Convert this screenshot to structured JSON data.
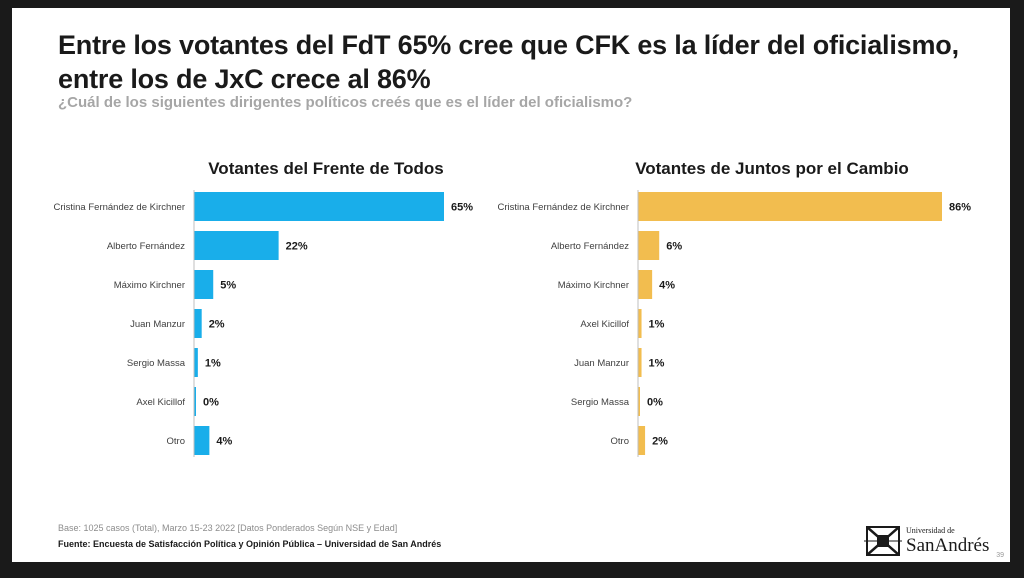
{
  "slide": {
    "title_line1": "Entre los votantes del FdT 65% cree que CFK es la líder del oficialismo,",
    "title_line2": "entre los de JxC crece al 86%",
    "subtitle": "¿Cuál de los siguientes dirigentes políticos creés que es el líder del oficialismo?",
    "base_note": "Base: 1025 casos (Total), Marzo 15-23 2022 [Datos Ponderados Según NSE y Edad]",
    "source": "Fuente: Encuesta de Satisfacción Política y Opinión Pública – Universidad de San Andrés",
    "logo_small": "Universidad de",
    "logo_big": "SanAndrés",
    "page_number": "39"
  },
  "chart_data": [
    {
      "type": "bar",
      "orientation": "horizontal",
      "title": "Votantes del Frente de Todos",
      "categories": [
        "Cristina Fernández de Kirchner",
        "Alberto Fernández",
        "Máximo Kirchner",
        "Juan Manzur",
        "Sergio Massa",
        "Axel Kicillof",
        "Otro"
      ],
      "values": [
        65,
        22,
        5,
        2,
        1,
        0,
        4
      ],
      "value_labels": [
        "65%",
        "22%",
        "5%",
        "2%",
        "1%",
        "0%",
        "4%"
      ],
      "color": "#19aeea",
      "xlim": [
        0,
        65
      ],
      "grid": false
    },
    {
      "type": "bar",
      "orientation": "horizontal",
      "title": "Votantes de Juntos por el Cambio",
      "categories": [
        "Cristina Fernández de Kirchner",
        "Alberto Fernández",
        "Máximo Kirchner",
        "Axel Kicillof",
        "Juan Manzur",
        "Sergio Massa",
        "Otro"
      ],
      "values": [
        86,
        6,
        4,
        1,
        1,
        0,
        2
      ],
      "value_labels": [
        "86%",
        "6%",
        "4%",
        "1%",
        "1%",
        "0%",
        "2%"
      ],
      "color": "#f2bd4f",
      "xlim": [
        0,
        86
      ],
      "grid": false
    }
  ]
}
